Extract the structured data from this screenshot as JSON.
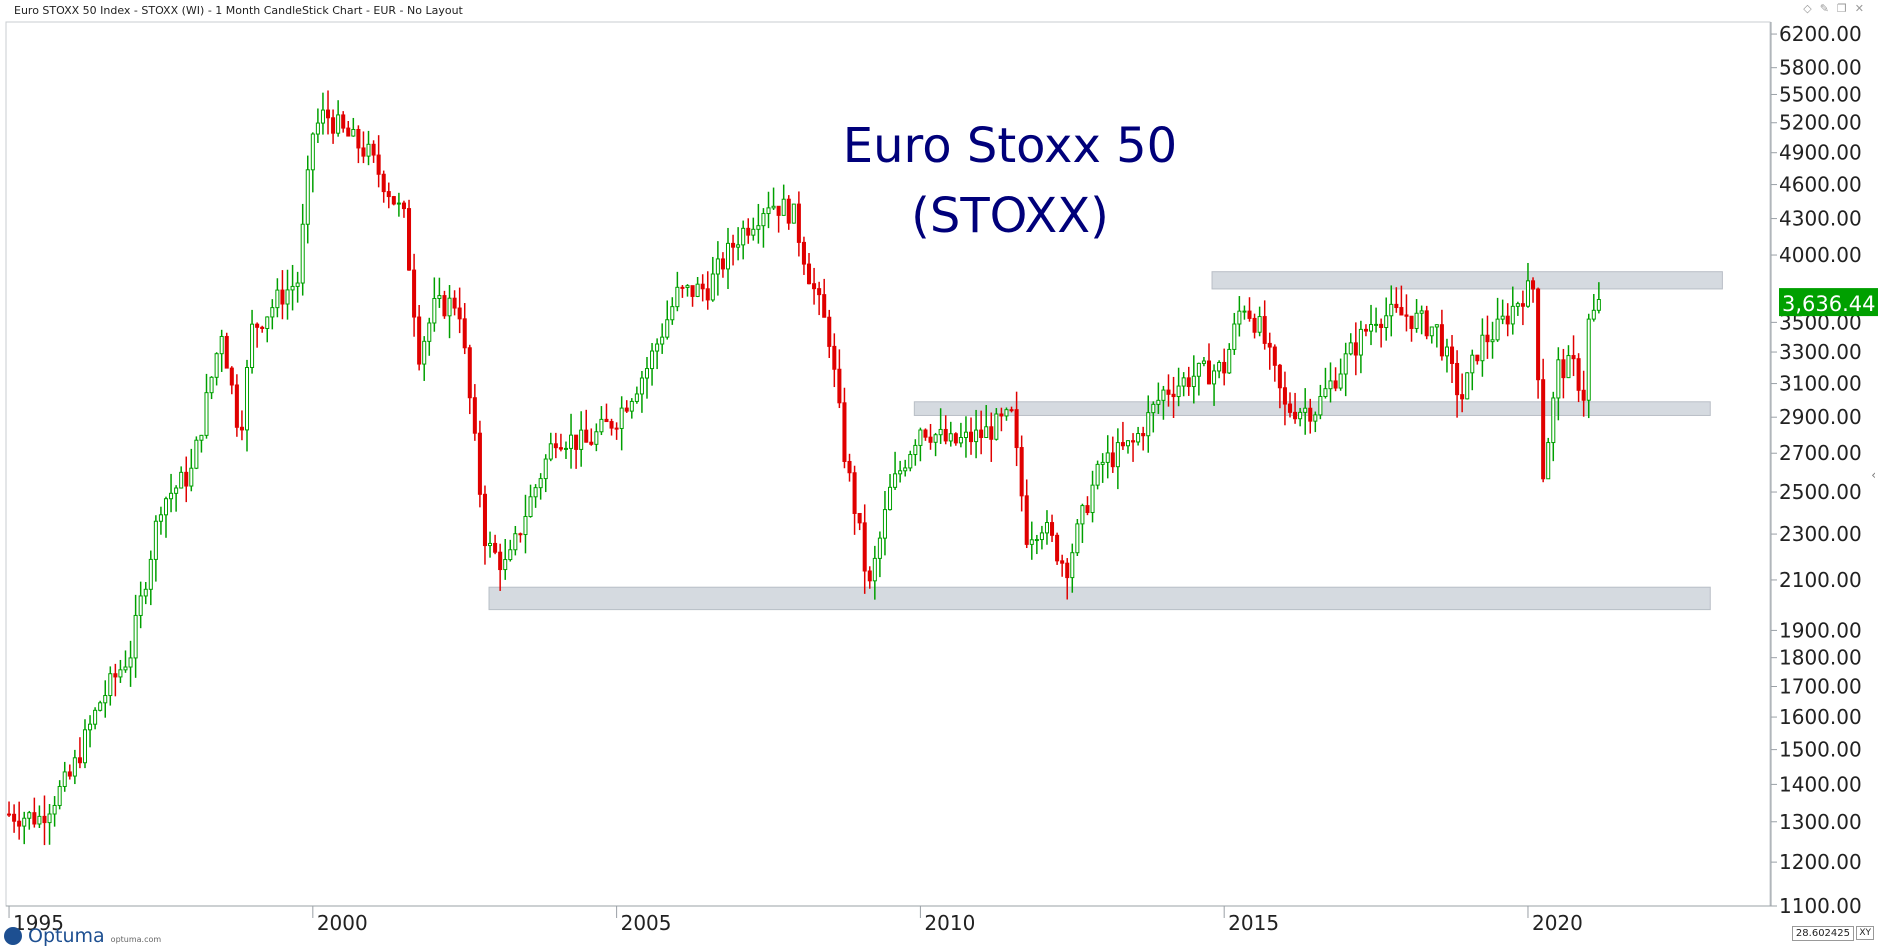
{
  "header": {
    "title": "Euro STOXX 50 Index - STOXX (WI) - 1 Month CandleStick Chart - EUR - No Layout",
    "controls": [
      {
        "name": "diamond-icon",
        "glyph": "◇"
      },
      {
        "name": "pin-icon",
        "glyph": "✎"
      },
      {
        "name": "restore-icon",
        "glyph": "❐"
      },
      {
        "name": "close-icon",
        "glyph": "✕"
      }
    ]
  },
  "brand": {
    "name": "Optuma",
    "url": "optuma.com"
  },
  "status": {
    "xy_readout": "28.602425",
    "xy_mode": "XY"
  },
  "colors": {
    "up": "#00a000",
    "down": "#e00000",
    "band": "#d5dae0",
    "title": "#00007a",
    "last_price_bg": "#00a000",
    "axis": "#9aa0a6"
  },
  "chart_data": {
    "type": "candlestick",
    "title": "Euro Stoxx 50",
    "subtitle": "(STOXX)",
    "xlim": [
      1994.95,
      2024.0
    ],
    "ylim": [
      1100,
      6350
    ],
    "y_scale": "log",
    "y_ticks": [
      1100,
      1200,
      1300,
      1400,
      1500,
      1600,
      1700,
      1800,
      1900,
      2100,
      2300,
      2500,
      2700,
      2900,
      3100,
      3300,
      3500,
      4000,
      4300,
      4600,
      4900,
      5200,
      5500,
      5800,
      6200
    ],
    "y_tick_labels": [
      "1100.00",
      "1200.00",
      "1300.00",
      "1400.00",
      "1500.00",
      "1600.00",
      "1700.00",
      "1800.00",
      "1900.00",
      "2100.00",
      "2300.00",
      "2500.00",
      "2700.00",
      "2900.00",
      "3100.00",
      "3300.00",
      "3500.00",
      "4000.00",
      "4300.00",
      "4600.00",
      "4900.00",
      "5200.00",
      "5500.00",
      "5800.00",
      "6200.00"
    ],
    "x_ticks": [
      1995,
      2000,
      2005,
      2010,
      2015,
      2020
    ],
    "x_tick_labels": [
      "1995",
      "2000",
      "2005",
      "2010",
      "2015",
      "2020"
    ],
    "last_price": 3636.44,
    "last_price_label": "3,636.44",
    "grid": false,
    "zones": [
      {
        "x0": 2014.8,
        "x1": 2023.2,
        "y0": 3740,
        "y1": 3870
      },
      {
        "x0": 2009.9,
        "x1": 2023.0,
        "y0": 2910,
        "y1": 2990
      },
      {
        "x0": 2002.9,
        "x1": 2023.0,
        "y0": 1980,
        "y1": 2070
      }
    ],
    "path_points": [
      [
        1995.0,
        1320
      ],
      [
        1995.5,
        1310
      ],
      [
        1996.0,
        1420
      ],
      [
        1996.5,
        1650
      ],
      [
        1997.0,
        1820
      ],
      [
        1997.5,
        2450
      ],
      [
        1998.0,
        2600
      ],
      [
        1998.5,
        3450
      ],
      [
        1998.8,
        2800
      ],
      [
        1999.0,
        3450
      ],
      [
        1999.5,
        3700
      ],
      [
        1999.75,
        3800
      ],
      [
        2000.0,
        5100
      ],
      [
        2000.2,
        5300
      ],
      [
        2000.5,
        5100
      ],
      [
        2000.9,
        4900
      ],
      [
        2001.2,
        4600
      ],
      [
        2001.5,
        4300
      ],
      [
        2001.75,
        3300
      ],
      [
        2002.0,
        3600
      ],
      [
        2002.4,
        3650
      ],
      [
        2002.7,
        2650
      ],
      [
        2002.85,
        2250
      ],
      [
        2003.2,
        2150
      ],
      [
        2003.5,
        2400
      ],
      [
        2004.0,
        2800
      ],
      [
        2004.5,
        2750
      ],
      [
        2005.0,
        2900
      ],
      [
        2005.5,
        3200
      ],
      [
        2006.0,
        3700
      ],
      [
        2006.5,
        3750
      ],
      [
        2007.0,
        4150
      ],
      [
        2007.5,
        4450
      ],
      [
        2007.9,
        4350
      ],
      [
        2008.2,
        3800
      ],
      [
        2008.5,
        3400
      ],
      [
        2008.75,
        2700
      ],
      [
        2009.0,
        2300
      ],
      [
        2009.15,
        2050
      ],
      [
        2009.5,
        2500
      ],
      [
        2010.0,
        2850
      ],
      [
        2010.5,
        2750
      ],
      [
        2011.0,
        2800
      ],
      [
        2011.5,
        2900
      ],
      [
        2011.75,
        2300
      ],
      [
        2012.0,
        2350
      ],
      [
        2012.4,
        2150
      ],
      [
        2012.8,
        2500
      ],
      [
        2013.0,
        2650
      ],
      [
        2013.5,
        2750
      ],
      [
        2014.0,
        3050
      ],
      [
        2014.5,
        3150
      ],
      [
        2015.0,
        3200
      ],
      [
        2015.3,
        3650
      ],
      [
        2015.6,
        3450
      ],
      [
        2016.0,
        2950
      ],
      [
        2016.5,
        2950
      ],
      [
        2017.0,
        3250
      ],
      [
        2017.5,
        3550
      ],
      [
        2018.0,
        3550
      ],
      [
        2018.5,
        3450
      ],
      [
        2018.9,
        3000
      ],
      [
        2019.2,
        3350
      ],
      [
        2019.5,
        3450
      ],
      [
        2019.9,
        3700
      ],
      [
        2020.1,
        3750
      ],
      [
        2020.25,
        2600
      ],
      [
        2020.5,
        3200
      ],
      [
        2020.8,
        3200
      ],
      [
        2020.9,
        2950
      ],
      [
        2021.0,
        3500
      ],
      [
        2021.2,
        3636
      ]
    ]
  }
}
